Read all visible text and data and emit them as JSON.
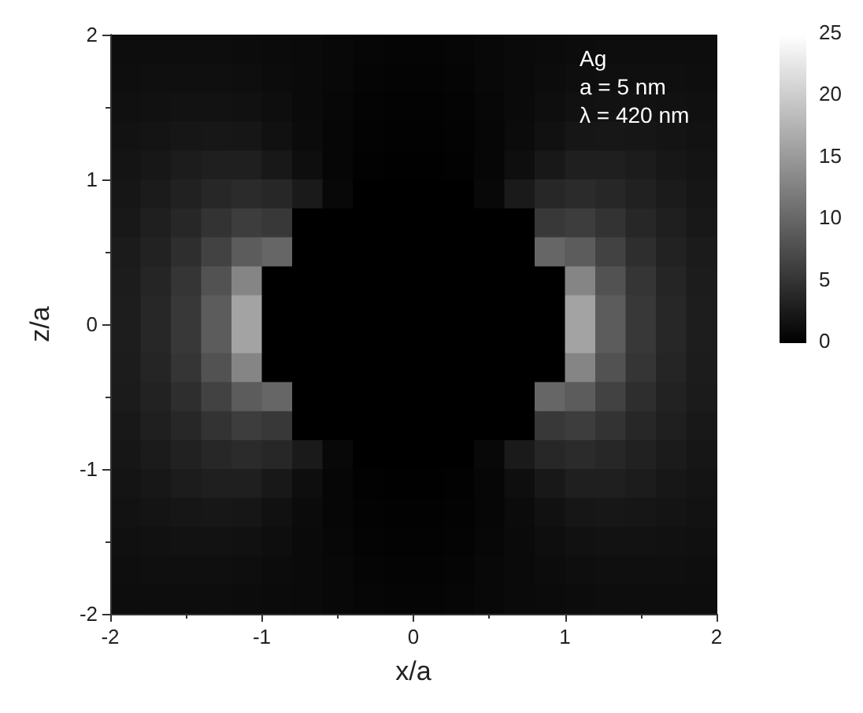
{
  "chart_data": {
    "type": "heatmap",
    "xlabel": "x/a",
    "ylabel": "z/a",
    "annotations": [
      "Ag",
      "a = 5 nm",
      "λ = 420 nm"
    ],
    "x": [
      -1.9,
      -1.7,
      -1.5,
      -1.3,
      -1.1,
      -0.9,
      -0.7,
      -0.5,
      -0.3,
      -0.1,
      0.1,
      0.3,
      0.5,
      0.7,
      0.9,
      1.1,
      1.3,
      1.5,
      1.7,
      1.9
    ],
    "y": [
      1.9,
      1.7,
      1.5,
      1.3,
      1.1,
      0.9,
      0.7,
      0.5,
      0.3,
      0.1,
      -0.1,
      -0.3,
      -0.5,
      -0.7,
      -0.9,
      -1.1,
      -1.3,
      -1.5,
      -1.7,
      -1.9
    ],
    "xlim": [
      -2,
      2
    ],
    "xticks": [
      -2,
      -1,
      0,
      1,
      2
    ],
    "ylim": [
      -2,
      2
    ],
    "yticks": [
      -2,
      -1,
      0,
      1,
      2
    ],
    "clim": [
      0,
      25
    ],
    "cticks": [
      0,
      5,
      10,
      15,
      20,
      25
    ],
    "cells": [
      [
        1.3,
        1.3,
        1.3,
        1.3,
        1.2,
        1.1,
        1,
        0.8,
        0.6,
        0.5,
        0.5,
        0.6,
        0.8,
        1,
        1.1,
        1.2,
        1.3,
        1.3,
        1.3,
        1.3
      ],
      [
        1.4,
        1.5,
        1.5,
        1.5,
        1.4,
        1.2,
        1,
        0.8,
        0.5,
        0.4,
        0.4,
        0.5,
        0.8,
        1,
        1.2,
        1.4,
        1.5,
        1.5,
        1.5,
        1.4
      ],
      [
        1.6,
        1.7,
        1.8,
        1.8,
        1.7,
        1.4,
        1,
        0.7,
        0.4,
        0.3,
        0.3,
        0.4,
        0.7,
        1,
        1.4,
        1.7,
        1.8,
        1.8,
        1.7,
        1.6
      ],
      [
        1.8,
        2,
        2.2,
        2.3,
        2.2,
        1.7,
        1.1,
        0.6,
        0.3,
        0.2,
        0.2,
        0.3,
        0.6,
        1.1,
        1.7,
        2.2,
        2.3,
        2.2,
        2,
        1.8
      ],
      [
        2,
        2.3,
        2.7,
        3,
        3,
        2.4,
        1.4,
        0.6,
        0.2,
        0.1,
        0.1,
        0.2,
        0.6,
        1.4,
        2.4,
        3,
        3,
        2.7,
        2.3,
        2
      ],
      [
        2.2,
        2.6,
        3.2,
        3.8,
        4.2,
        3.8,
        2.5,
        0.8,
        0,
        0,
        0,
        0,
        0.8,
        2.5,
        3.8,
        4.2,
        3.8,
        3.2,
        2.6,
        2.2
      ],
      [
        2.4,
        3,
        3.8,
        5,
        6,
        5.5,
        0,
        0,
        0,
        0,
        0,
        0,
        0,
        0,
        5.5,
        6,
        5,
        3.8,
        3,
        2.4
      ],
      [
        2.6,
        3.3,
        4.5,
        6.5,
        9,
        10,
        0,
        0,
        0,
        0,
        0,
        0,
        0,
        0,
        10,
        9,
        6.5,
        4.5,
        3.3,
        2.6
      ],
      [
        2.7,
        3.6,
        5.2,
        8,
        13,
        0,
        0,
        0,
        0,
        0,
        0,
        0,
        0,
        0,
        0,
        13,
        8,
        5.2,
        3.6,
        2.7
      ],
      [
        2.8,
        3.8,
        5.5,
        9,
        16,
        0,
        0,
        0,
        0,
        0,
        0,
        0,
        0,
        0,
        0,
        16,
        9,
        5.5,
        3.8,
        2.8
      ],
      [
        2.8,
        3.8,
        5.5,
        9,
        16,
        0,
        0,
        0,
        0,
        0,
        0,
        0,
        0,
        0,
        0,
        16,
        9,
        5.5,
        3.8,
        2.8
      ],
      [
        2.7,
        3.6,
        5.2,
        8,
        13,
        0,
        0,
        0,
        0,
        0,
        0,
        0,
        0,
        0,
        0,
        13,
        8,
        5.2,
        3.6,
        2.7
      ],
      [
        2.6,
        3.3,
        4.5,
        6.5,
        9,
        10,
        0,
        0,
        0,
        0,
        0,
        0,
        0,
        0,
        10,
        9,
        6.5,
        4.5,
        3.3,
        2.6
      ],
      [
        2.4,
        3,
        3.8,
        5,
        6,
        5.5,
        0,
        0,
        0,
        0,
        0,
        0,
        0,
        0,
        5.5,
        6,
        5,
        3.8,
        3,
        2.4
      ],
      [
        2.2,
        2.6,
        3.2,
        3.8,
        4.2,
        3.8,
        2.5,
        0.8,
        0,
        0,
        0,
        0,
        0.8,
        2.5,
        3.8,
        4.2,
        3.8,
        3.2,
        2.6,
        2.2
      ],
      [
        2,
        2.3,
        2.7,
        3,
        3,
        2.4,
        1.4,
        0.6,
        0.2,
        0.1,
        0.1,
        0.2,
        0.6,
        1.4,
        2.4,
        3,
        3,
        2.7,
        2.3,
        2
      ],
      [
        1.8,
        2,
        2.2,
        2.3,
        2.2,
        1.7,
        1.1,
        0.6,
        0.3,
        0.2,
        0.2,
        0.3,
        0.6,
        1.1,
        1.7,
        2.2,
        2.3,
        2.2,
        2,
        1.8
      ],
      [
        1.6,
        1.7,
        1.8,
        1.8,
        1.7,
        1.4,
        1,
        0.7,
        0.4,
        0.3,
        0.3,
        0.4,
        0.7,
        1,
        1.4,
        1.7,
        1.8,
        1.8,
        1.7,
        1.6
      ],
      [
        1.4,
        1.5,
        1.5,
        1.5,
        1.4,
        1.2,
        1,
        0.8,
        0.5,
        0.4,
        0.4,
        0.5,
        0.8,
        1,
        1.2,
        1.4,
        1.5,
        1.5,
        1.5,
        1.4
      ],
      [
        1.3,
        1.3,
        1.3,
        1.3,
        1.2,
        1.1,
        1,
        0.8,
        0.6,
        0.5,
        0.5,
        0.6,
        0.8,
        1,
        1.1,
        1.2,
        1.3,
        1.3,
        1.3,
        1.3
      ]
    ]
  }
}
